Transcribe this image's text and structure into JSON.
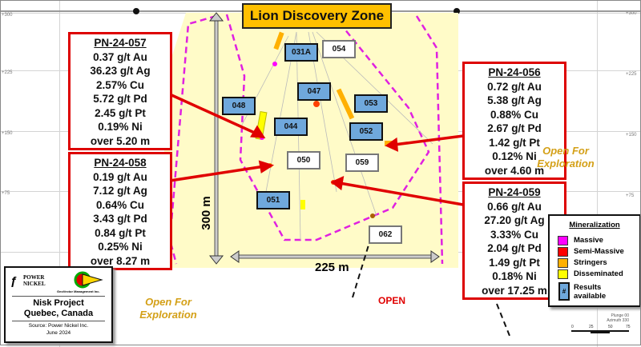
{
  "title": "Lion Discovery Zone",
  "elevation_ticks": [
    "+300",
    "+225",
    "+150",
    "+75"
  ],
  "callouts": [
    {
      "hole": "PN-24-057",
      "lines": [
        "0.37 g/t Au",
        "36.23 g/t Ag",
        "2.57% Cu",
        "5.72 g/t Pd",
        "2.45 g/t Pt",
        "0.19% Ni",
        "over 5.20 m"
      ]
    },
    {
      "hole": "PN-24-058",
      "lines": [
        "0.19 g/t Au",
        "7.12 g/t Ag",
        "0.64% Cu",
        "3.43 g/t Pd",
        "0.84 g/t Pt",
        "0.25% Ni",
        "over 8.27 m"
      ]
    },
    {
      "hole": "PN-24-056",
      "lines": [
        "0.72 g/t Au",
        "5.38 g/t Ag",
        "0.88% Cu",
        "2.67 g/t Pd",
        "1.42 g/t Pt",
        "0.12% Ni",
        "over 4.60 m"
      ]
    },
    {
      "hole": "PN-24-059",
      "lines": [
        "0.66 g/t Au",
        "27.20 g/t Ag",
        "3.33% Cu",
        "2.04 g/t Pd",
        "1.49 g/t Pt",
        "0.18% Ni",
        "over 17.25 m"
      ]
    }
  ],
  "holes": [
    {
      "id": "031A",
      "results": true
    },
    {
      "id": "054",
      "results": false
    },
    {
      "id": "047",
      "results": true
    },
    {
      "id": "053",
      "results": true
    },
    {
      "id": "048",
      "results": true
    },
    {
      "id": "044",
      "results": true
    },
    {
      "id": "052",
      "results": true
    },
    {
      "id": "050",
      "results": false
    },
    {
      "id": "059",
      "results": false
    },
    {
      "id": "051",
      "results": true
    },
    {
      "id": "062",
      "results": false
    }
  ],
  "scale_vertical": "300 m",
  "scale_horizontal": "225 m",
  "open_label": "OPEN",
  "open_for_exploration": [
    "Open For",
    "Exploration"
  ],
  "logo": {
    "company1": "POWER NICKEL",
    "company2": "GeoVector Management Inc.",
    "project": "Nisk Project",
    "location": "Quebec, Canada",
    "source": "Source: Power Nickel Inc.",
    "date": "June 2024"
  },
  "legend": {
    "title": "Mineralization",
    "items": [
      {
        "label": "Massive",
        "color": "#FF00FF"
      },
      {
        "label": "Semi-Massive",
        "color": "#FF0000"
      },
      {
        "label": "Stringers",
        "color": "#FFB000"
      },
      {
        "label": "Disseminated",
        "color": "#FFFF00"
      }
    ],
    "results_symbol": "#",
    "results_label": "Results available"
  },
  "view": {
    "plunge": "Plunge 00",
    "azimuth": "Azimuth 330",
    "scale_ticks": [
      "0",
      "25",
      "50",
      "75"
    ]
  },
  "colors": {
    "zone_fill": "#FFFBC8",
    "callout_border": "#DD0000",
    "hole_results": "#6FA8DC",
    "envelope": "#E020E0"
  }
}
